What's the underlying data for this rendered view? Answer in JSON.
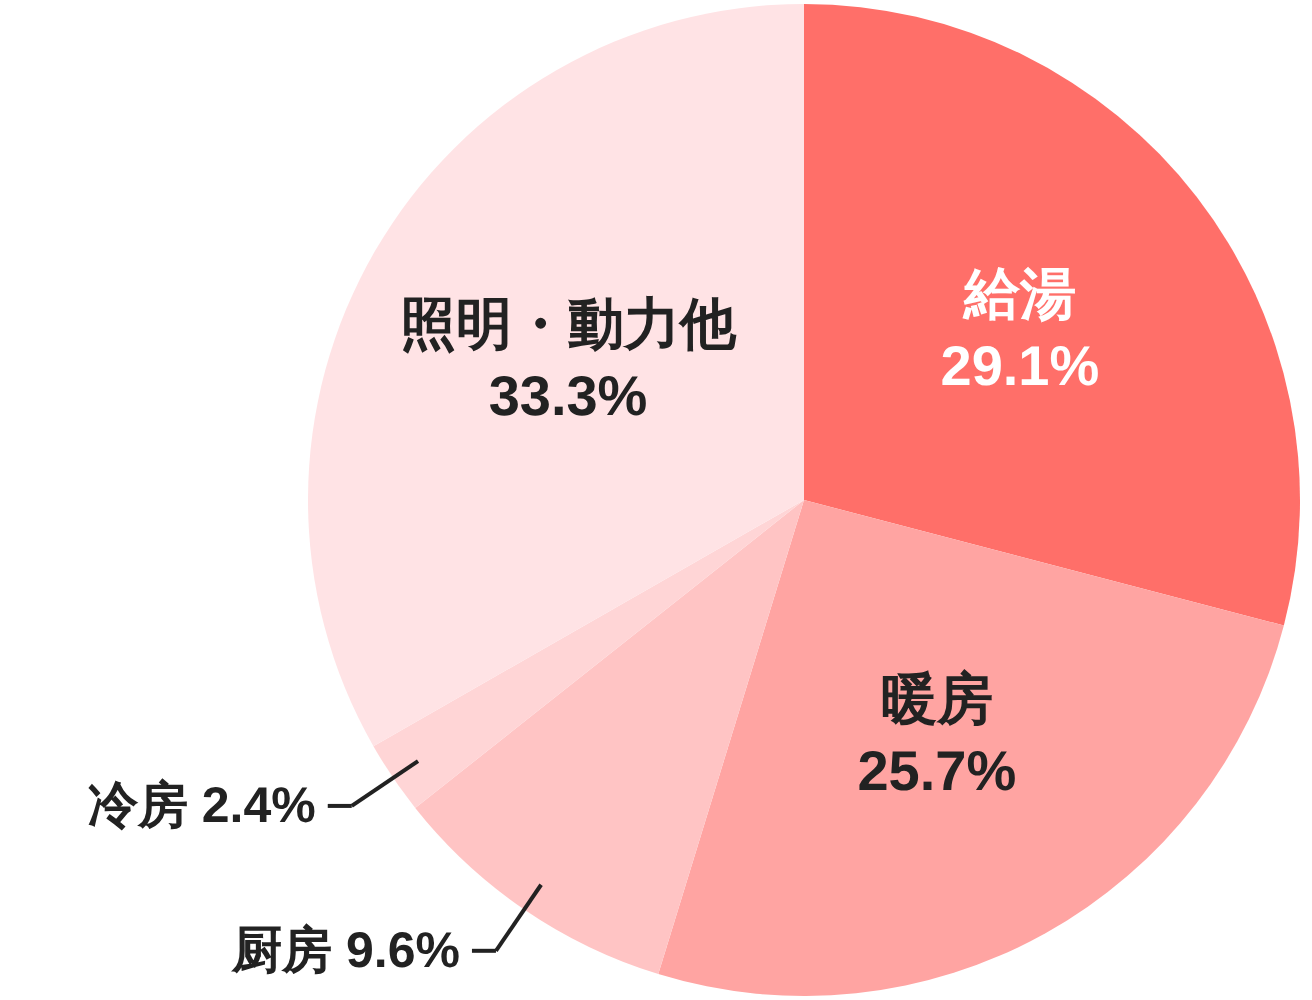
{
  "chart_data": {
    "type": "pie",
    "categories": [
      "給湯",
      "暖房",
      "厨房",
      "冷房",
      "照明・動力他"
    ],
    "values": [
      29.1,
      25.7,
      9.6,
      2.4,
      33.3
    ],
    "value_labels": [
      "29.1%",
      "25.7%",
      "9.6%",
      "2.4%",
      "33.3%"
    ],
    "colors": [
      "#ff6f69",
      "#ffa4a2",
      "#ffc4c4",
      "#ffd5d6",
      "#ffe3e5"
    ]
  }
}
